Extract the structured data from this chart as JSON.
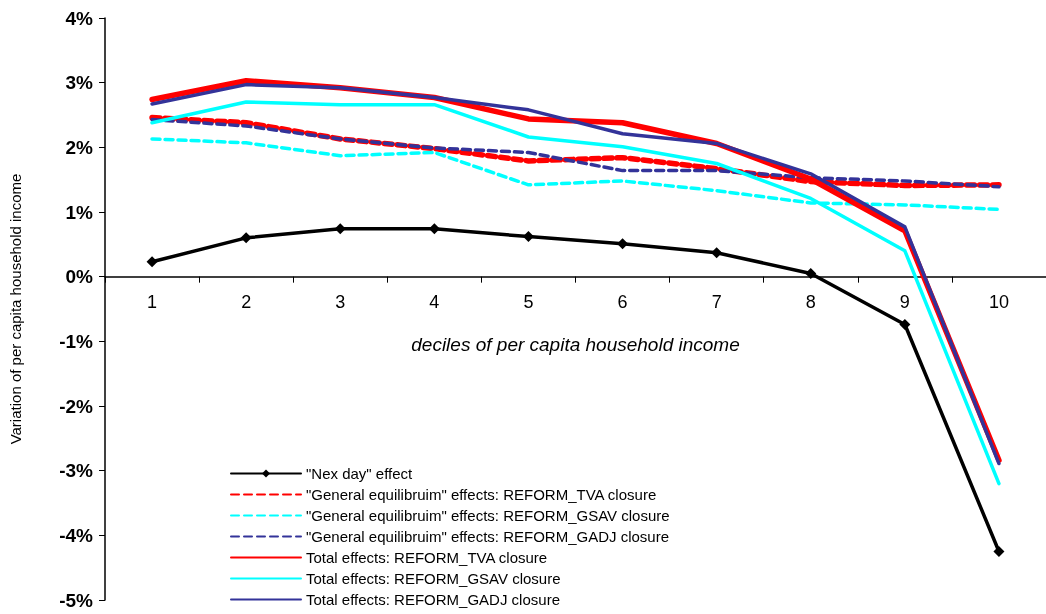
{
  "chart_data": {
    "type": "line",
    "xlabel": "deciles of per capita household income",
    "ylabel": "Variation of per capita household income",
    "categories": [
      "1",
      "2",
      "3",
      "4",
      "5",
      "6",
      "7",
      "8",
      "9",
      "10"
    ],
    "ylim": [
      -5,
      4
    ],
    "yticks": [
      {
        "value": -5,
        "label": "-5%"
      },
      {
        "value": -4,
        "label": "-4%"
      },
      {
        "value": -3,
        "label": "-3%"
      },
      {
        "value": -2,
        "label": "-2%"
      },
      {
        "value": -1,
        "label": "-1%"
      },
      {
        "value": 0,
        "label": "0%"
      },
      {
        "value": 1,
        "label": "1%"
      },
      {
        "value": 2,
        "label": "2%"
      },
      {
        "value": 3,
        "label": "3%"
      },
      {
        "value": 4,
        "label": "4%"
      }
    ],
    "legend": "bottom",
    "series": [
      {
        "name": "\"Nex day\" effect",
        "color": "#000000",
        "marker": "diamond",
        "line_style": "solid",
        "values": [
          0.23,
          0.6,
          0.74,
          0.74,
          0.62,
          0.51,
          0.37,
          0.05,
          -0.74,
          -4.25
        ]
      },
      {
        "name": "\"General equilibruim\" effects: REFORM_TVA closure",
        "color": "#ff0000",
        "line_style": "dashed",
        "values": [
          2.46,
          2.38,
          2.13,
          1.98,
          1.79,
          1.84,
          1.67,
          1.47,
          1.41,
          1.42
        ]
      },
      {
        "name": "\"General equilibruim\" effects: REFORM_GSAV closure",
        "color": "#00ffff",
        "line_style": "dashed",
        "values": [
          2.13,
          2.07,
          1.87,
          1.92,
          1.42,
          1.48,
          1.33,
          1.14,
          1.11,
          1.04
        ]
      },
      {
        "name": "\"General equilibruim\" effects: REFORM_GADJ closure",
        "color": "#333399",
        "line_style": "dashed",
        "values": [
          2.43,
          2.33,
          2.13,
          1.99,
          1.92,
          1.64,
          1.64,
          1.53,
          1.48,
          1.39
        ]
      },
      {
        "name": "Total effects: REFORM_TVA closure",
        "color": "#ff0000",
        "line_style": "solid",
        "values": [
          2.74,
          3.03,
          2.92,
          2.77,
          2.44,
          2.38,
          2.06,
          1.51,
          0.71,
          -2.84
        ]
      },
      {
        "name": "Total effects: REFORM_GSAV closure",
        "color": "#00ffff",
        "line_style": "solid",
        "values": [
          2.38,
          2.7,
          2.66,
          2.66,
          2.16,
          2.01,
          1.75,
          1.21,
          0.4,
          -3.2
        ]
      },
      {
        "name": "Total effects: REFORM_GADJ closure",
        "color": "#333399",
        "line_style": "solid",
        "values": [
          2.67,
          2.97,
          2.92,
          2.77,
          2.58,
          2.21,
          2.06,
          1.59,
          0.77,
          -2.89
        ]
      }
    ]
  }
}
